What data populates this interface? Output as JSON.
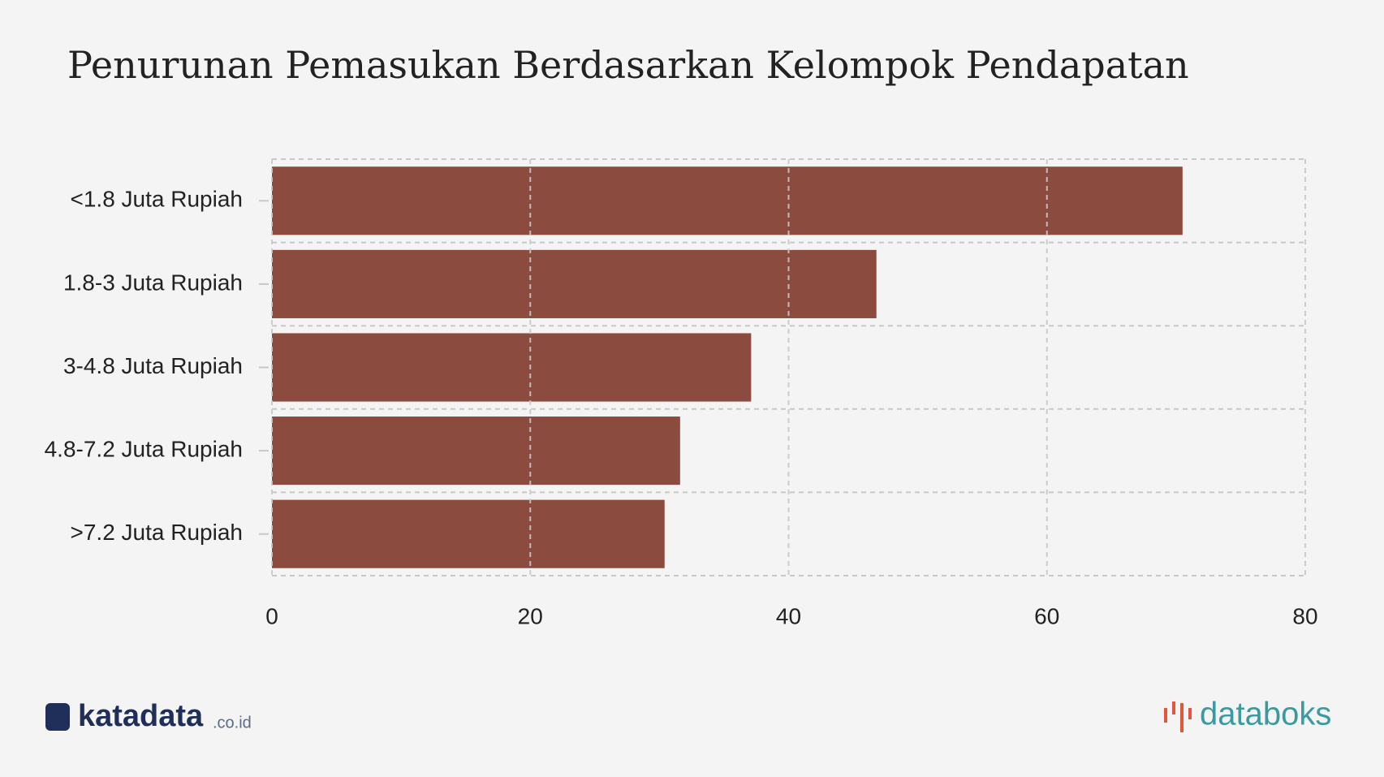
{
  "chart_data": {
    "type": "barh",
    "title": "Penurunan Pemasukan Berdasarkan Kelompok Pendapatan",
    "categories": [
      "<1.8 Juta Rupiah",
      "1.8-3 Juta Rupiah",
      "3-4.8 Juta Rupiah",
      "4.8-7.2 Juta Rupiah",
      ">7.2 Juta Rupiah"
    ],
    "values": [
      70.5,
      46.8,
      37.1,
      31.6,
      30.4
    ],
    "color": "#8b4c3f",
    "xlim": [
      0,
      80
    ],
    "xticks": [
      0,
      20,
      40,
      60,
      80
    ],
    "grid": true
  },
  "logos": {
    "left": "katadata",
    "left_suffix": ".co.id",
    "right": "databoks"
  }
}
